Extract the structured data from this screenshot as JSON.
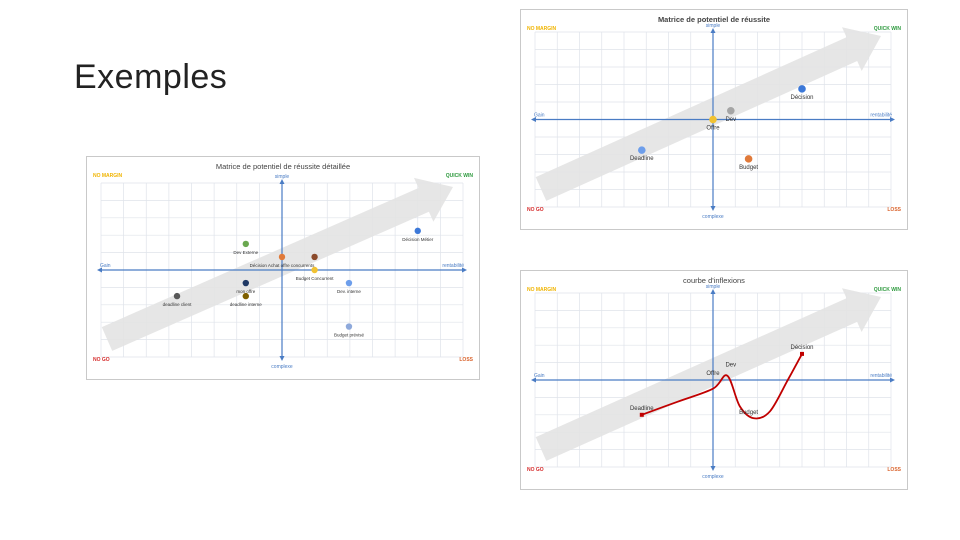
{
  "slide": {
    "title": "Exemples"
  },
  "colors": {
    "axis": "#4a7cc4",
    "grid": "#dfe3ea",
    "arrow": "#e3e3e3",
    "no_marge": "#f0b400",
    "quick_win": "#2e9a3e",
    "no_go": "#d62b2b",
    "loss": "#d9622b",
    "curve": "#c00000"
  },
  "chart_data": [
    {
      "type": "scatter",
      "title": "Matrice de potentiel de réussite détaillée",
      "corners": {
        "top_left": "NO MARGIN",
        "top_right": "QUICK WIN",
        "bottom_left": "NO GO",
        "bottom_right": "LOSS"
      },
      "axis_labels": {
        "top": "simple",
        "bottom": "complexe",
        "left": "Gain",
        "right": "rentabilité"
      },
      "xlim": [
        -10,
        10
      ],
      "ylim": [
        -10,
        10
      ],
      "points": [
        {
          "label": "Dev Externe",
          "x": -2,
          "y": 3,
          "color": "#6aa84f"
        },
        {
          "label": "Décision Achat offre concurrents",
          "x": 0,
          "y": 1.5,
          "color": "#e07a3a"
        },
        {
          "label": "",
          "x": 1.8,
          "y": 1.5,
          "color": "#8b4a2b"
        },
        {
          "label": "Budget Concurrent",
          "x": 1.8,
          "y": 0,
          "color": "#f1c232"
        },
        {
          "label": "Décision Métier",
          "x": 7.5,
          "y": 4.5,
          "color": "#3c78d8"
        },
        {
          "label": "mon offre",
          "x": -2,
          "y": -1.5,
          "color": "#1f3864"
        },
        {
          "label": "Dev. interne",
          "x": 3.7,
          "y": -1.5,
          "color": "#6d9eeb"
        },
        {
          "label": "deadline interne",
          "x": -2,
          "y": -3,
          "color": "#7f6000"
        },
        {
          "label": "deadline client",
          "x": -5.8,
          "y": -3,
          "color": "#595959"
        },
        {
          "label": "Budget prévisé",
          "x": 3.7,
          "y": -6.5,
          "color": "#8ea9db"
        }
      ]
    },
    {
      "type": "scatter",
      "title": "Matrice de potentiel de réussite",
      "corners": {
        "top_left": "NO MARGIN",
        "top_right": "QUICK WIN",
        "bottom_left": "NO GO",
        "bottom_right": "LOSS"
      },
      "axis_labels": {
        "top": "simple",
        "bottom": "complexe",
        "left": "Gain",
        "right": "rentabilité"
      },
      "xlim": [
        -10,
        10
      ],
      "ylim": [
        -10,
        10
      ],
      "points": [
        {
          "label": "Décision",
          "x": 5,
          "y": 3.5,
          "color": "#3c78d8"
        },
        {
          "label": "Dev",
          "x": 1,
          "y": 1,
          "color": "#a5a5a5"
        },
        {
          "label": "Offre",
          "x": 0,
          "y": 0,
          "color": "#f1c232"
        },
        {
          "label": "Deadline",
          "x": -4,
          "y": -3.5,
          "color": "#6d9eeb"
        },
        {
          "label": "Budget",
          "x": 2,
          "y": -4.5,
          "color": "#e07a3a"
        }
      ]
    },
    {
      "type": "line",
      "title": "courbe d'inflexions",
      "corners": {
        "top_left": "NO MARGIN",
        "top_right": "QUICK WIN",
        "bottom_left": "NO GO",
        "bottom_right": "LOSS"
      },
      "axis_labels": {
        "top": "simple",
        "bottom": "complexe",
        "left": "Gain",
        "right": "rentabilité"
      },
      "xlim": [
        -10,
        10
      ],
      "ylim": [
        -10,
        10
      ],
      "labels": [
        {
          "text": "Deadline",
          "x": -4,
          "y": -4
        },
        {
          "text": "Offre",
          "x": 0,
          "y": 0
        },
        {
          "text": "Dev",
          "x": 1,
          "y": 1
        },
        {
          "text": "Budget",
          "x": 2,
          "y": -4.5
        },
        {
          "text": "Décision",
          "x": 5,
          "y": 3
        }
      ],
      "curve": [
        {
          "x": -4,
          "y": -4
        },
        {
          "x": -2,
          "y": -2.5
        },
        {
          "x": 0,
          "y": -1
        },
        {
          "x": 0.8,
          "y": 0.5
        },
        {
          "x": 1.5,
          "y": -3
        },
        {
          "x": 2.3,
          "y": -4.4
        },
        {
          "x": 3.2,
          "y": -3.6
        },
        {
          "x": 4.2,
          "y": 0
        },
        {
          "x": 5,
          "y": 3
        }
      ]
    }
  ]
}
